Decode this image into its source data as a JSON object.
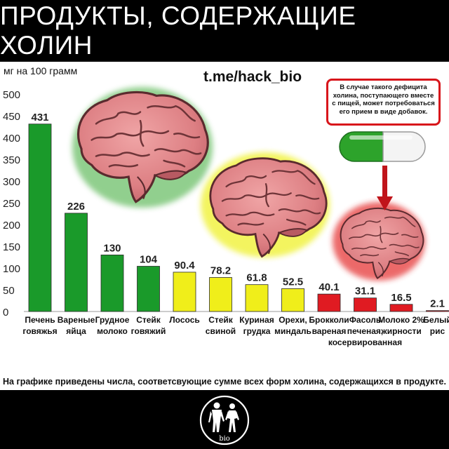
{
  "header": {
    "title": "ПРОДУКТЫ, СОДЕРЖАЩИЕ ХОЛИН"
  },
  "handle": "t.me/hack_bio",
  "note": "В случае такого дефицита холина, поступающего вместе с пищей, может потребоваться его прием в виде добавок.",
  "footnote": "На графике приведены числа, соответсвующие сумме всех форм холина, содержащихся в продукте.",
  "logo": {
    "text": "bio"
  },
  "colors": {
    "green": "#1a9a2a",
    "yellow": "#f0ee1a",
    "red": "#e01b22",
    "header_bg": "#000000"
  },
  "chart_data": {
    "type": "bar",
    "ylabel": "мг на 100 грамм",
    "ylim": [
      0,
      500
    ],
    "yticks": [
      0,
      50,
      100,
      150,
      200,
      250,
      300,
      350,
      400,
      450,
      500
    ],
    "categories": [
      [
        "Печень",
        "говяжья"
      ],
      [
        "Вареные",
        "яйца"
      ],
      [
        "Грудное",
        "молоко"
      ],
      [
        "Стейк",
        "говяжий"
      ],
      [
        "Лосось"
      ],
      [
        "Стейк",
        "свиной"
      ],
      [
        "Куриная",
        "грудка"
      ],
      [
        "Орехи,",
        "миндаль"
      ],
      [
        "Брокколи",
        "вареная"
      ],
      [
        "Фасоль",
        "печеная,",
        "косервированная"
      ],
      [
        "Молоко 2%",
        "жирности"
      ],
      [
        "Белый",
        "рис"
      ]
    ],
    "values": [
      431,
      226,
      130,
      104,
      90.4,
      78.2,
      61.8,
      52.5,
      40.1,
      31.1,
      16.5,
      2.1
    ],
    "value_labels": [
      "431",
      "226",
      "130",
      "104",
      "90.4",
      "78.2",
      "61.8",
      "52.5",
      "40.1",
      "31.1",
      "16.5",
      "2.1"
    ],
    "bar_colors": [
      "green",
      "green",
      "green",
      "green",
      "yellow",
      "yellow",
      "yellow",
      "yellow",
      "red",
      "red",
      "red",
      "red"
    ],
    "grid": false,
    "legend": "none"
  }
}
